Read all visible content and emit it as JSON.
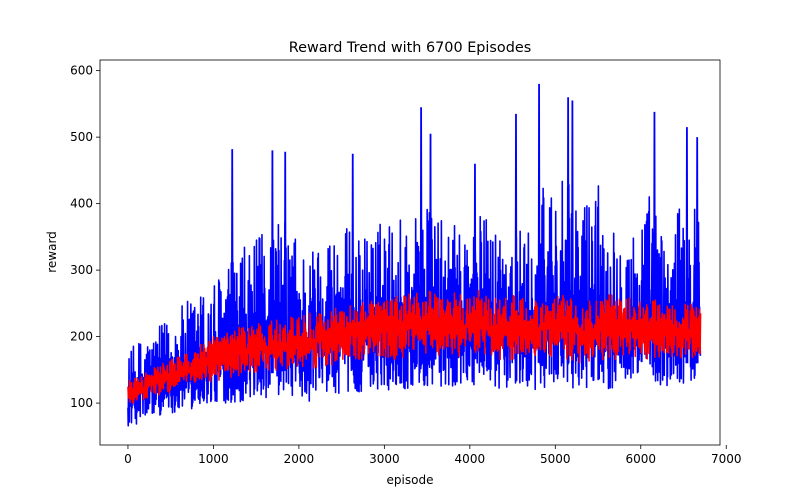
{
  "chart_data": {
    "type": "line",
    "title": "Reward Trend with 6700 Episodes",
    "xlabel": "episode",
    "ylabel": "reward",
    "xlim": [
      -327,
      6927
    ],
    "ylim": [
      37,
      616
    ],
    "xticks": [
      0,
      1000,
      2000,
      3000,
      4000,
      5000,
      6000,
      7000
    ],
    "yticks": [
      100,
      200,
      300,
      400,
      500,
      600
    ],
    "grid": false,
    "legend": "none",
    "series": [
      {
        "color": "#0000ff",
        "x": [
          0,
          150,
          300,
          500,
          700,
          900,
          1100,
          1300,
          1500,
          1700,
          1900,
          2100,
          2300,
          2500,
          2700,
          2900,
          3100,
          3300,
          3500,
          3700,
          3900,
          4100,
          4300,
          4500,
          4700,
          4900,
          5100,
          5300,
          5500,
          5700,
          5900,
          6100,
          6300,
          6500,
          6700
        ],
        "upper": [
          220,
          250,
          255,
          290,
          320,
          345,
          380,
          420,
          440,
          482,
          480,
          420,
          460,
          475,
          440,
          470,
          480,
          500,
          505,
          470,
          460,
          490,
          480,
          470,
          450,
          580,
          560,
          520,
          560,
          480,
          450,
          540,
          430,
          520,
          500
        ],
        "lower": [
          65,
          70,
          80,
          85,
          90,
          95,
          100,
          100,
          105,
          105,
          110,
          100,
          110,
          115,
          115,
          120,
          120,
          120,
          125,
          120,
          130,
          125,
          120,
          125,
          115,
          125,
          120,
          120,
          125,
          120,
          130,
          120,
          125,
          120,
          120
        ],
        "peaks": [
          [
            1220,
            482
          ],
          [
            1690,
            480
          ],
          [
            1840,
            478
          ],
          [
            2630,
            475
          ],
          [
            3430,
            545
          ],
          [
            3540,
            505
          ],
          [
            4060,
            460
          ],
          [
            4540,
            535
          ],
          [
            4810,
            580
          ],
          [
            5150,
            560
          ],
          [
            5200,
            555
          ],
          [
            6160,
            538
          ],
          [
            6540,
            515
          ],
          [
            6660,
            500
          ]
        ]
      },
      {
        "color": "#ff0000",
        "x": [
          0,
          150,
          300,
          500,
          700,
          900,
          1100,
          1300,
          1500,
          1700,
          1900,
          2100,
          2300,
          2500,
          2700,
          2900,
          3100,
          3300,
          3500,
          3700,
          3900,
          4100,
          4300,
          4500,
          4700,
          4900,
          5100,
          5300,
          5500,
          5700,
          5900,
          6100,
          6300,
          6500,
          6700
        ],
        "upper": [
          135,
          140,
          155,
          165,
          175,
          195,
          205,
          215,
          220,
          225,
          230,
          235,
          240,
          245,
          250,
          255,
          260,
          265,
          270,
          270,
          265,
          270,
          260,
          265,
          255,
          255,
          265,
          255,
          260,
          265,
          260,
          255,
          255,
          250,
          250
        ],
        "lower": [
          95,
          100,
          110,
          115,
          125,
          130,
          135,
          140,
          145,
          145,
          150,
          150,
          155,
          160,
          165,
          170,
          165,
          170,
          175,
          170,
          170,
          175,
          165,
          165,
          170,
          170,
          165,
          160,
          165,
          165,
          170,
          165,
          170,
          165,
          170
        ]
      }
    ]
  }
}
